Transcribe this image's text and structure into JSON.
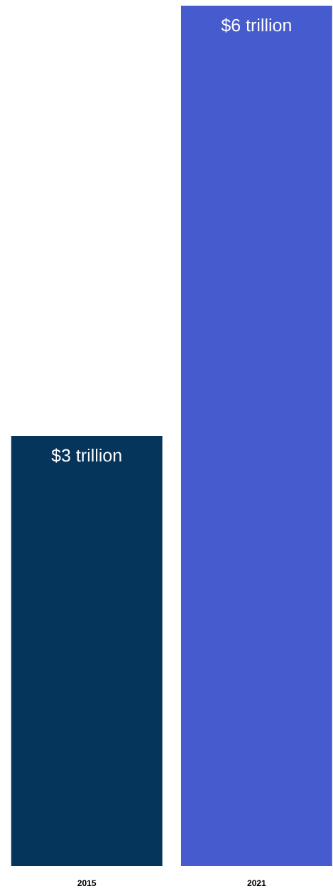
{
  "chart_data": {
    "type": "bar",
    "categories": [
      "2015",
      "2021"
    ],
    "values": [
      3,
      6
    ],
    "value_labels": [
      "$3 trillion",
      "$6 trillion"
    ],
    "colors": [
      "#06355c",
      "#465cce"
    ]
  }
}
